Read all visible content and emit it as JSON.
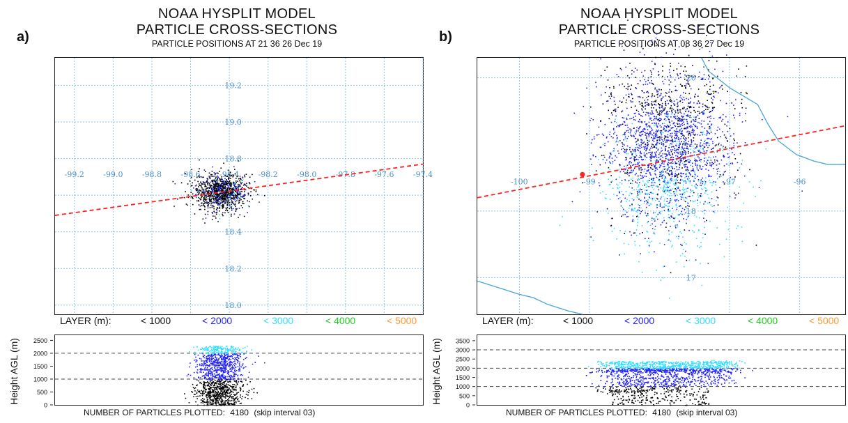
{
  "panels": [
    {
      "letter": "a)",
      "title_line1": "NOAA HYSPLIT MODEL",
      "title_line2": "PARTICLE CROSS-SECTIONS",
      "subtitle": "PARTICLE POSITIONS AT 21 36  26 Dec 19",
      "legend": {
        "label": "LAYER (m):",
        "items": [
          "< 1000",
          "< 2000",
          "< 3000",
          "< 4000",
          "< 5000"
        ]
      },
      "height_axis_label": "Height AGL (m)",
      "footer": {
        "label": "NUMBER OF PARTICLES PLOTTED:",
        "count": "4180",
        "skip": "(skip interval     03)"
      }
    },
    {
      "letter": "b)",
      "title_line1": "NOAA HYSPLIT MODEL",
      "title_line2": "PARTICLE CROSS-SECTIONS",
      "subtitle": "PARTICLE POSITIONS AT 08 36  27 Dec 19",
      "legend": {
        "label": "LAYER (m):",
        "items": [
          "< 1000",
          "< 2000",
          "< 3000",
          "< 4000",
          "< 5000"
        ]
      },
      "height_axis_label": "Height AGL (m)",
      "footer": {
        "label": "NUMBER OF PARTICLES PLOTTED:",
        "count": "4180",
        "skip": "(skip interval     03)"
      }
    }
  ],
  "colors": {
    "layer_lt1000": "#000000",
    "layer_lt2000": "#2222ff",
    "layer_lt3000": "#33ddff",
    "layer_lt4000": "#22cc22",
    "layer_lt5000": "#ff9933",
    "grid": "#8fc4e8",
    "coast": "#4aa3d8",
    "cross_section_line": "#ff2222"
  },
  "chart_data": [
    {
      "type": "scatter",
      "panel": "a",
      "lon_ticks": [
        "-99.2",
        "-99.0",
        "-98.8",
        "-98.6",
        "-98.4",
        "-98.2",
        "-98.0",
        "-97.8",
        "-97.6",
        "-97.4"
      ],
      "lat_ticks": [
        "19.2",
        "19.0",
        "18.8",
        "18.6",
        "18.4",
        "18.2",
        "18.0"
      ],
      "lon_range": [
        -99.3,
        -97.4
      ],
      "lat_range": [
        17.95,
        19.35
      ],
      "cloud": {
        "center_lon": -98.45,
        "center_lat": 18.62,
        "spread_lon": 0.07,
        "spread_lat": 0.05,
        "dominant_layer": "< 1000"
      },
      "cross_section_line": {
        "lon": [
          -99.3,
          -97.4
        ],
        "lat": [
          18.49,
          18.77
        ]
      },
      "height_ticks": [
        "2500",
        "2000",
        "1500",
        "1000",
        "500",
        "0"
      ],
      "height_range": [
        0,
        2700
      ],
      "height_ref_lines": [
        1000,
        2000
      ],
      "height_profile": {
        "center_lon": -98.45,
        "spread_lon": 0.06,
        "top": 2300
      }
    },
    {
      "type": "scatter",
      "panel": "b",
      "lon_ticks": [
        "-100",
        "-99",
        "-97",
        "-96"
      ],
      "lat_ticks": [
        "20",
        "18",
        "17"
      ],
      "lon_range": [
        -100.6,
        -95.35
      ],
      "lat_range": [
        16.45,
        20.3
      ],
      "cloud": {
        "center_lon": -97.9,
        "center_lat": 18.9,
        "spread_lon": 0.45,
        "spread_lat": 0.65,
        "dominant_layer": "< 2000"
      },
      "cross_section_line": {
        "lon": [
          -100.6,
          -95.35
        ],
        "lat": [
          18.2,
          19.28
        ]
      },
      "source_point": {
        "lon": -99.1,
        "lat": 18.55
      },
      "height_ticks": [
        "3500",
        "3000",
        "2500",
        "2000",
        "1500",
        "1000",
        "500",
        "0"
      ],
      "height_range": [
        0,
        3800
      ],
      "height_ref_lines": [
        1000,
        2000,
        3000
      ],
      "height_profile": {
        "lon_start": -98.75,
        "lon_end": -97.0,
        "top": 2400
      }
    }
  ]
}
